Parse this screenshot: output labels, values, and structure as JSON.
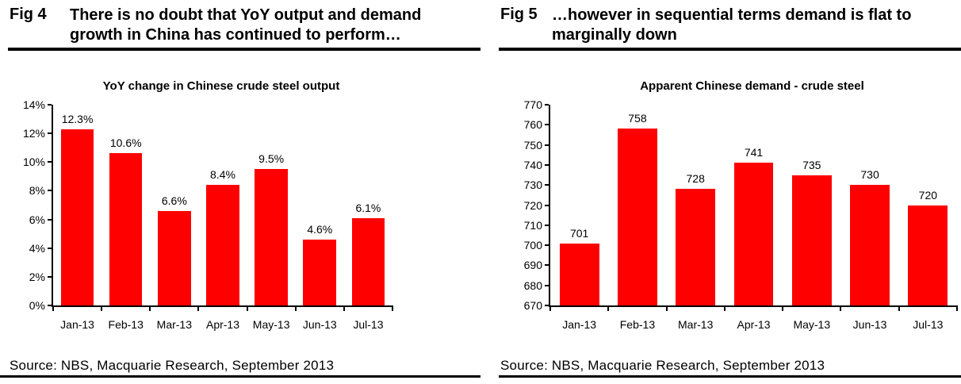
{
  "page": {
    "background": "#ffffff",
    "text_color": "#000000"
  },
  "figures": [
    {
      "label": "Fig 4",
      "title_line1": "There is no doubt that YoY output and demand",
      "title_line2": "growth in China has continued to perform…",
      "source": "Source: NBS, Macquarie Research, September 2013"
    },
    {
      "label": "Fig 5",
      "title_line1": "…however in sequential terms demand is flat to",
      "title_line2": "marginally down",
      "source": "Source: NBS, Macquarie Research, September 2013"
    }
  ],
  "chart_data": [
    {
      "type": "bar",
      "title": "YoY change in Chinese crude steel output",
      "categories": [
        "Jan-13",
        "Feb-13",
        "Mar-13",
        "Apr-13",
        "May-13",
        "Jun-13",
        "Jul-13"
      ],
      "values": [
        12.3,
        10.6,
        6.6,
        8.4,
        9.5,
        4.6,
        6.1
      ],
      "bar_labels": [
        "12.3%",
        "10.6%",
        "6.6%",
        "8.4%",
        "9.5%",
        "4.6%",
        "6.1%"
      ],
      "y_ticks": [
        "0%",
        "2%",
        "4%",
        "6%",
        "8%",
        "10%",
        "12%",
        "14%"
      ],
      "ylim": [
        0,
        14
      ],
      "xlabel": "",
      "ylabel": "",
      "grid": false,
      "legend": "none",
      "bar_color": "#ff0000",
      "axis_color": "#000000"
    },
    {
      "type": "bar",
      "title": "Apparent Chinese demand - crude steel",
      "categories": [
        "Jan-13",
        "Feb-13",
        "Mar-13",
        "Apr-13",
        "May-13",
        "Jun-13",
        "Jul-13"
      ],
      "values": [
        701,
        758,
        728,
        741,
        735,
        730,
        720
      ],
      "bar_labels": [
        "701",
        "758",
        "728",
        "741",
        "735",
        "730",
        "720"
      ],
      "y_ticks": [
        "670",
        "680",
        "690",
        "700",
        "710",
        "720",
        "730",
        "740",
        "750",
        "760",
        "770"
      ],
      "ylim": [
        670,
        770
      ],
      "xlabel": "",
      "ylabel": "",
      "grid": false,
      "legend": "none",
      "bar_color": "#ff0000",
      "axis_color": "#000000"
    }
  ]
}
